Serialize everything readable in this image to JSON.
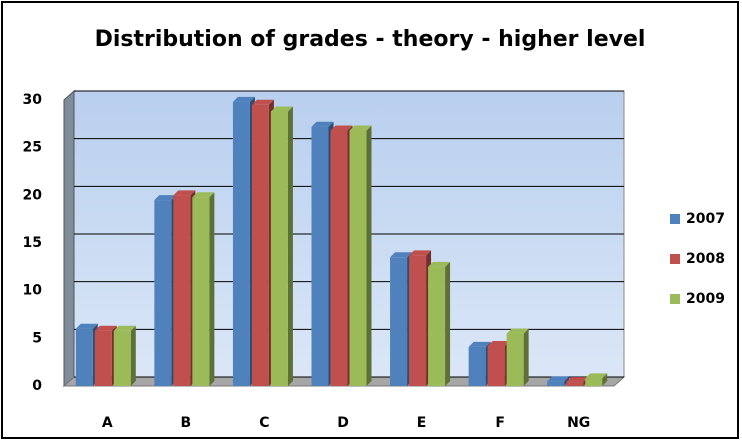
{
  "chart_data": {
    "type": "bar",
    "title": "Distribution of grades - theory - higher level",
    "categories": [
      "A",
      "B",
      "C",
      "D",
      "E",
      "F",
      "NG"
    ],
    "series": [
      {
        "name": "2007",
        "color": "#4f81bd",
        "values": [
          6,
          19.5,
          29.8,
          27.2,
          13.5,
          4.1,
          0.5
        ]
      },
      {
        "name": "2008",
        "color": "#c0504d",
        "values": [
          5.8,
          20,
          29.5,
          26.8,
          13.7,
          4.2,
          0.4
        ]
      },
      {
        "name": "2009",
        "color": "#9bbb59",
        "values": [
          5.8,
          19.8,
          28.8,
          26.8,
          12.5,
          5.5,
          0.8
        ]
      }
    ],
    "ylim": [
      0,
      30
    ],
    "yticks": [
      0,
      5,
      10,
      15,
      20,
      25,
      30
    ],
    "grid": true,
    "legend": "right"
  }
}
